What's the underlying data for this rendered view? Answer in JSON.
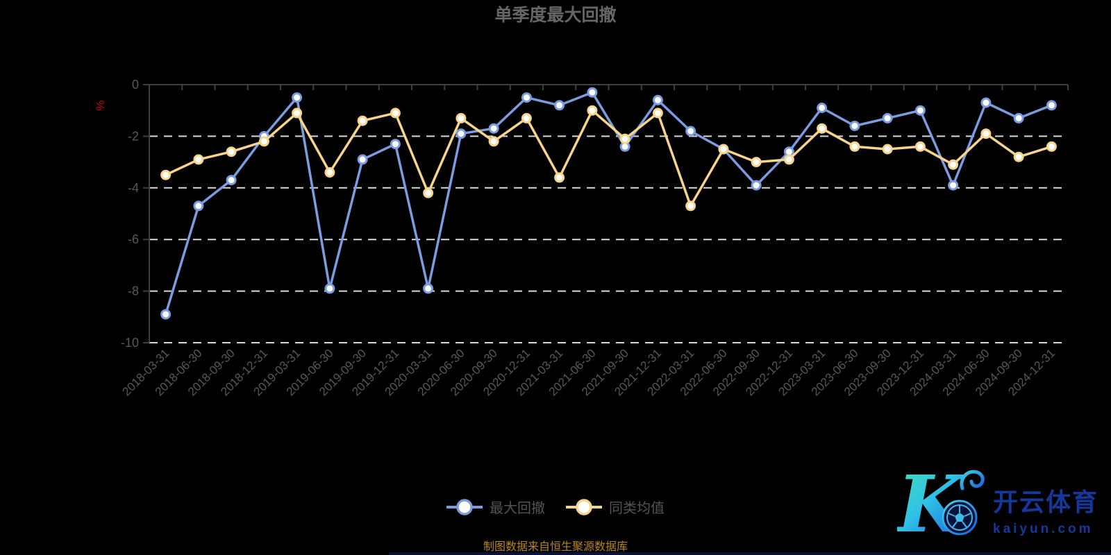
{
  "title": "单季度最大回撤",
  "y_axis_name": "%",
  "caption": "制图数据来自恒生聚源数据库",
  "watermark": {
    "logo_letter": "K",
    "brand": "开云体育",
    "domain": "kaiyun.com"
  },
  "colors": {
    "background": "#000000",
    "axis_line": "#3f3f3f",
    "grid_dashed": "#d9d9d9",
    "axis_label": "#585858",
    "title_text": "#666666",
    "legend_text": "#545454",
    "caption_text": "#b8871c",
    "y_name_red": "#c80000",
    "watermark_blue": "#16379b",
    "marker_fill": "#ffffff"
  },
  "chart_data": {
    "type": "line",
    "title": "单季度最大回撤",
    "ylabel": "%",
    "ylim": [
      -10,
      0
    ],
    "y_ticks": [
      0,
      -2,
      -4,
      -6,
      -8,
      -10
    ],
    "grid": "horizontal-dashed",
    "legend_position": "bottom",
    "categories": [
      "2018-03-31",
      "2018-06-30",
      "2018-09-30",
      "2018-12-31",
      "2019-03-31",
      "2019-06-30",
      "2019-09-30",
      "2019-12-31",
      "2020-03-31",
      "2020-06-30",
      "2020-09-30",
      "2020-12-31",
      "2021-03-31",
      "2021-06-30",
      "2021-09-30",
      "2021-12-31",
      "2022-03-31",
      "2022-06-30",
      "2022-09-30",
      "2022-12-31",
      "2023-03-31",
      "2023-06-30",
      "2023-09-30",
      "2023-12-31",
      "2024-03-31",
      "2024-06-30",
      "2024-09-30",
      "2024-12-31"
    ],
    "series": [
      {
        "name": "最大回撤",
        "color": "#7B9CE1",
        "values": [
          -8.9,
          -4.7,
          -3.7,
          -2.0,
          -0.5,
          -7.9,
          -2.9,
          -2.3,
          -7.9,
          -1.9,
          -1.7,
          -0.5,
          -0.8,
          -0.3,
          -2.4,
          -0.6,
          -1.8,
          -2.5,
          -3.9,
          -2.6,
          -0.9,
          -1.6,
          -1.3,
          -1.0,
          -3.9,
          -0.7,
          -1.3,
          -0.8
        ]
      },
      {
        "name": "同类均值",
        "color": "#F8D48B",
        "values": [
          -3.5,
          -2.9,
          -2.6,
          -2.2,
          -1.1,
          -3.4,
          -1.4,
          -1.1,
          -4.2,
          -1.3,
          -2.2,
          -1.3,
          -3.6,
          -1.0,
          -2.1,
          -1.1,
          -4.7,
          -2.5,
          -3.0,
          -2.9,
          -1.7,
          -2.4,
          -2.5,
          -2.4,
          -3.1,
          -1.9,
          -2.8,
          -2.4
        ]
      }
    ]
  }
}
